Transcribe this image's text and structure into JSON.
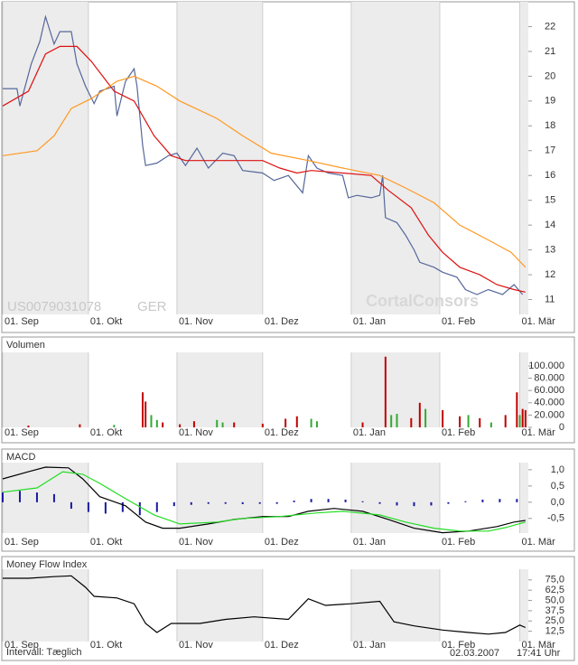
{
  "chart_data": [
    {
      "type": "line",
      "annotations": [
        "US0079031078",
        "GER",
        "CortalConsors"
      ],
      "xlim": [
        0,
        184
      ],
      "xticks": [
        {
          "value": 0,
          "label": "01. Sep"
        },
        {
          "value": 30,
          "label": "01. Okt"
        },
        {
          "value": 61,
          "label": "01. Nov"
        },
        {
          "value": 91,
          "label": "01. Dez"
        },
        {
          "value": 122,
          "label": "01. Jan"
        },
        {
          "value": 153,
          "label": "01. Feb"
        },
        {
          "value": 181,
          "label": "01. Mär"
        }
      ],
      "ylim": [
        10.4,
        23
      ],
      "yticks": [
        11,
        12,
        13,
        14,
        15,
        16,
        17,
        18,
        19,
        20,
        21,
        22
      ],
      "grid": "x",
      "shade": "#ececec",
      "series": [
        {
          "color": "#56679a",
          "x": [
            0,
            5,
            6,
            10,
            13,
            15,
            18,
            20,
            24,
            26,
            29,
            32,
            34,
            39,
            40,
            43,
            46,
            47,
            49,
            50,
            54,
            58,
            61,
            64,
            68,
            72,
            77,
            81,
            84,
            91,
            95,
            100,
            105,
            107,
            110,
            114,
            119,
            121,
            124,
            129,
            132,
            133,
            134,
            138,
            141,
            144,
            146,
            151,
            154,
            159,
            162,
            166,
            170,
            175,
            179,
            182
          ],
          "values": [
            19.5,
            19.5,
            18.8,
            20.5,
            21.4,
            22.4,
            21.3,
            21.8,
            21.8,
            20.5,
            19.6,
            18.9,
            19.4,
            19.6,
            18.4,
            19.8,
            20.3,
            19.6,
            17.2,
            16.4,
            16.5,
            16.8,
            16.9,
            16.4,
            17.1,
            16.3,
            16.9,
            16.8,
            16.2,
            16.1,
            15.8,
            16.0,
            15.3,
            16.8,
            16.3,
            16.1,
            16.0,
            15.1,
            15.2,
            15.1,
            15.2,
            16.0,
            14.3,
            14.1,
            13.6,
            13.0,
            12.5,
            12.3,
            12.1,
            11.9,
            11.4,
            11.2,
            11.4,
            11.2,
            11.6,
            11.2
          ]
        },
        {
          "color": "#dd1111",
          "x": [
            0,
            9,
            15,
            20,
            26,
            31,
            39,
            46,
            53,
            59,
            64,
            72,
            81,
            91,
            97,
            103,
            108,
            119,
            129,
            135,
            143,
            149,
            154,
            160,
            167,
            173,
            179,
            183
          ],
          "values": [
            18.8,
            19.4,
            20.9,
            21.2,
            21.2,
            20.6,
            19.4,
            19.0,
            17.6,
            16.8,
            16.6,
            16.6,
            16.6,
            16.6,
            16.3,
            16.1,
            16.2,
            16.1,
            16.0,
            15.4,
            14.7,
            13.6,
            12.9,
            12.3,
            12.0,
            11.6,
            11.4,
            11.3
          ]
        },
        {
          "color": "#ff9922",
          "x": [
            0,
            12,
            18,
            24,
            31,
            40,
            46,
            54,
            62,
            75,
            84,
            94,
            107,
            119,
            132,
            141,
            151,
            160,
            170,
            178,
            183
          ],
          "values": [
            16.8,
            17.0,
            17.6,
            18.7,
            19.1,
            19.8,
            20.0,
            19.6,
            19.0,
            18.3,
            17.6,
            16.9,
            16.6,
            16.3,
            16.0,
            15.5,
            14.9,
            14.0,
            13.4,
            12.9,
            12.3
          ]
        }
      ]
    },
    {
      "type": "bar",
      "title": "Volumen",
      "xlim": [
        0,
        184
      ],
      "xticks": [
        {
          "value": 0,
          "label": "01. Sep"
        },
        {
          "value": 30,
          "label": "01. Okt"
        },
        {
          "value": 61,
          "label": "01. Nov"
        },
        {
          "value": 91,
          "label": "01. Dez"
        },
        {
          "value": 122,
          "label": "01. Jan"
        },
        {
          "value": 153,
          "label": "01. Feb"
        },
        {
          "value": 181,
          "label": "01. Mär"
        }
      ],
      "ylim": [
        0,
        122000
      ],
      "yticks": [
        0,
        {
          "value": 20000,
          "label": "20.000"
        },
        {
          "value": 40000,
          "label": "40.000"
        },
        {
          "value": 60000,
          "label": "60.000"
        },
        {
          "value": 80000,
          "label": "80.000"
        },
        {
          "value": 100000,
          "label": "100.000"
        }
      ],
      "grid": "x",
      "shade": "#ececec",
      "x": [
        9,
        27,
        39,
        49,
        50,
        52,
        54,
        56,
        62,
        67,
        75,
        77,
        81,
        91,
        99,
        103,
        108,
        110,
        126,
        134,
        136,
        138,
        143,
        146,
        148,
        154,
        160,
        163,
        167,
        171,
        176,
        180,
        181,
        182,
        183
      ],
      "values": [
        3000,
        5000,
        4000,
        57000,
        42000,
        20000,
        12000,
        8000,
        5000,
        10000,
        12000,
        8000,
        8000,
        6000,
        14000,
        18000,
        14000,
        10000,
        8000,
        115000,
        20000,
        22000,
        15000,
        40000,
        30000,
        28000,
        18000,
        20000,
        15000,
        8000,
        20000,
        57000,
        20000,
        30000,
        28000
      ],
      "colors": [
        "#c00000",
        "#c00000",
        "#33aa33",
        "#c00000",
        "#c00000",
        "#33aa33",
        "#33aa33",
        "#c00000",
        "#c00000",
        "#c00000",
        "#33aa33",
        "#33aa33",
        "#c00000",
        "#c00000",
        "#c00000",
        "#c00000",
        "#33aa33",
        "#33aa33",
        "#c00000",
        "#c00000",
        "#33aa33",
        "#33aa33",
        "#c00000",
        "#c00000",
        "#33aa33",
        "#c00000",
        "#c00000",
        "#33aa33",
        "#c00000",
        "#33aa33",
        "#c00000",
        "#c00000",
        "#33aa33",
        "#c00000",
        "#c00000"
      ]
    },
    {
      "type": "line",
      "title": "MACD",
      "xlim": [
        0,
        184
      ],
      "xticks": [
        {
          "value": 0,
          "label": "01. Sep"
        },
        {
          "value": 30,
          "label": "01. Okt"
        },
        {
          "value": 61,
          "label": "01. Nov"
        },
        {
          "value": 91,
          "label": "01. Dez"
        },
        {
          "value": 122,
          "label": "01. Jan"
        },
        {
          "value": 153,
          "label": "01. Feb"
        },
        {
          "value": 181,
          "label": "01. Mär"
        }
      ],
      "ylim": [
        -0.95,
        1.22
      ],
      "yticks": [
        {
          "value": -0.5,
          "label": "-0,5"
        },
        {
          "value": 0,
          "label": "0,0"
        },
        {
          "value": 0.5,
          "label": "0,5"
        },
        {
          "value": 1,
          "label": "1,0"
        }
      ],
      "grid": "x",
      "shade": "#ececec",
      "series": [
        {
          "type": "bar",
          "color": "#1a1aa0",
          "x": [
            0,
            6,
            12,
            18,
            24,
            30,
            36,
            42,
            48,
            54,
            60,
            66,
            72,
            78,
            84,
            90,
            96,
            102,
            108,
            114,
            120,
            126,
            132,
            138,
            144,
            150,
            156,
            162,
            168,
            174,
            180
          ],
          "values": [
            0.3,
            0.35,
            0.3,
            0.25,
            -0.2,
            -0.3,
            -0.35,
            -0.3,
            -0.4,
            -0.3,
            -0.12,
            -0.08,
            -0.05,
            -0.05,
            -0.06,
            -0.05,
            -0.05,
            0.05,
            0.1,
            0.1,
            0.08,
            0.03,
            -0.05,
            -0.1,
            -0.12,
            -0.1,
            -0.05,
            0.03,
            0.08,
            0.1,
            0.1
          ]
        },
        {
          "color": "#000000",
          "x": [
            0,
            9,
            15,
            23,
            28,
            34,
            43,
            50,
            56,
            62,
            72,
            81,
            91,
            100,
            107,
            116,
            126,
            135,
            144,
            154,
            163,
            173,
            179,
            183
          ],
          "values": [
            0.72,
            0.94,
            1.08,
            1.06,
            0.72,
            0.17,
            -0.11,
            -0.61,
            -0.8,
            -0.8,
            -0.67,
            -0.53,
            -0.44,
            -0.44,
            -0.28,
            -0.19,
            -0.28,
            -0.53,
            -0.8,
            -0.94,
            -0.89,
            -0.75,
            -0.61,
            -0.56
          ]
        },
        {
          "color": "#22dd22",
          "x": [
            0,
            12,
            21,
            28,
            34,
            43,
            53,
            62,
            75,
            84,
            97,
            110,
            119,
            132,
            141,
            151,
            160,
            170,
            176,
            183
          ],
          "values": [
            0.31,
            0.44,
            0.94,
            0.86,
            0.58,
            0.11,
            -0.39,
            -0.67,
            -0.61,
            -0.5,
            -0.44,
            -0.33,
            -0.28,
            -0.39,
            -0.61,
            -0.8,
            -0.89,
            -0.89,
            -0.78,
            -0.61
          ]
        }
      ]
    },
    {
      "type": "line",
      "title": "Money Flow Index",
      "xlim": [
        0,
        184
      ],
      "xticks": [
        {
          "value": 0,
          "label": "01. Sep"
        },
        {
          "value": 30,
          "label": "01. Okt"
        },
        {
          "value": 61,
          "label": "01. Nov"
        },
        {
          "value": 91,
          "label": "01. Dez"
        },
        {
          "value": 122,
          "label": "01. Jan"
        },
        {
          "value": 153,
          "label": "01. Feb"
        },
        {
          "value": 181,
          "label": "01. Mär"
        }
      ],
      "ylim": [
        0,
        88
      ],
      "yticks": [
        {
          "value": 12.5,
          "label": "12,5"
        },
        {
          "value": 25,
          "label": "25,0"
        },
        {
          "value": 37.5,
          "label": "37,5"
        },
        {
          "value": 50,
          "label": "50,0"
        },
        {
          "value": 62.5,
          "label": "62,5"
        },
        {
          "value": 75,
          "label": "75,0"
        }
      ],
      "grid": "x",
      "shade": "#ececec",
      "series": [
        {
          "color": "#000000",
          "x": [
            0,
            9,
            18,
            24,
            29,
            32,
            40,
            46,
            50,
            54,
            59,
            69,
            78,
            88,
            100,
            107,
            113,
            122,
            132,
            137,
            144,
            154,
            163,
            170,
            176,
            181,
            183
          ],
          "values": [
            77,
            77,
            79,
            80,
            66,
            55,
            53,
            46,
            22,
            11,
            22,
            22,
            27,
            30,
            27,
            52,
            44,
            46,
            49,
            24,
            19,
            14,
            11,
            9,
            11,
            20,
            17
          ]
        }
      ]
    }
  ],
  "footer": {
    "interval": "Intervall: Tæglich",
    "date": "02.03.2007",
    "time": "17:41 Uhr"
  }
}
